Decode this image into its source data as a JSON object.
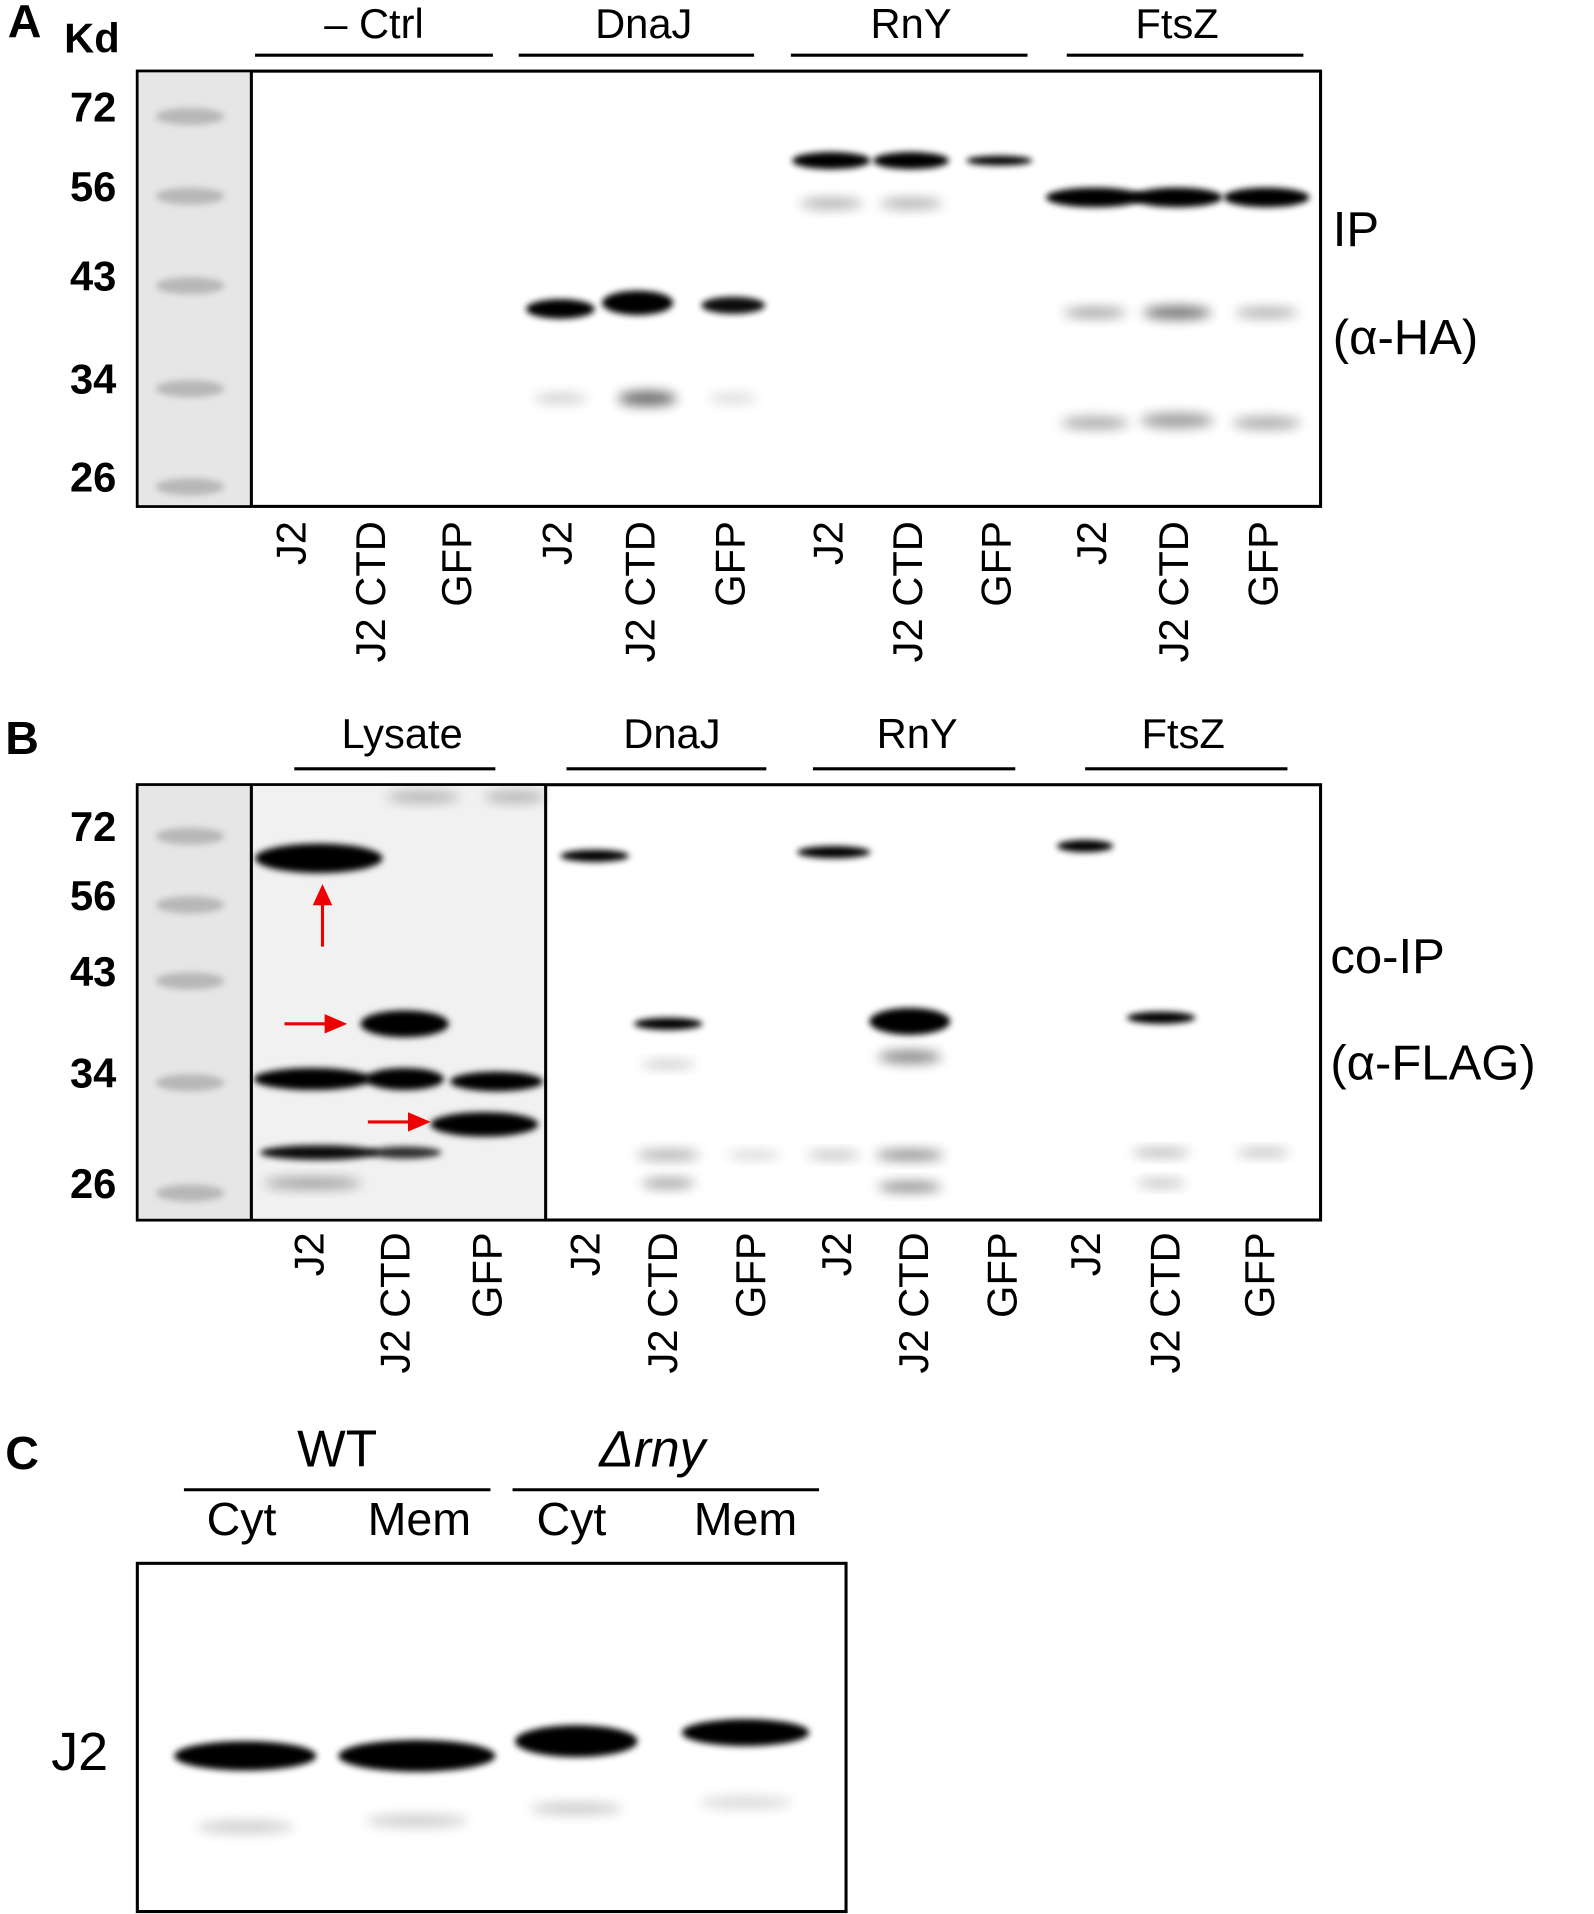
{
  "panels": [
    {
      "label": "A",
      "unit_label": "Kd",
      "markers": [
        72,
        56,
        43,
        34,
        26
      ],
      "groups": [
        {
          "name": "– Ctrl",
          "lanes": [
            "J2",
            "J2 CTD",
            "GFP"
          ]
        },
        {
          "name": "DnaJ",
          "lanes": [
            "J2",
            "J2 CTD",
            "GFP"
          ]
        },
        {
          "name": "RnY",
          "lanes": [
            "J2",
            "J2 CTD",
            "GFP"
          ]
        },
        {
          "name": "FtsZ",
          "lanes": [
            "J2",
            "J2 CTD",
            "GFP"
          ]
        }
      ],
      "side_labels": [
        "IP",
        "(α-HA)"
      ]
    },
    {
      "label": "B",
      "markers": [
        72,
        56,
        43,
        34,
        26
      ],
      "groups": [
        {
          "name": "Lysate",
          "lanes": [
            "J2",
            "J2 CTD",
            "GFP"
          ]
        },
        {
          "name": "DnaJ",
          "lanes": [
            "J2",
            "J2 CTD",
            "GFP"
          ]
        },
        {
          "name": "RnY",
          "lanes": [
            "J2",
            "J2 CTD",
            "GFP"
          ]
        },
        {
          "name": "FtsZ",
          "lanes": [
            "J2",
            "J2 CTD",
            "GFP"
          ]
        }
      ],
      "side_labels": [
        "co-IP",
        "(α-FLAG)"
      ]
    },
    {
      "label": "C",
      "groups": [
        {
          "name": "WT",
          "lanes": [
            "Cyt",
            "Mem"
          ]
        },
        {
          "name": "Δrny",
          "lanes": [
            "Cyt",
            "Mem"
          ]
        }
      ],
      "row_label": "J2"
    }
  ]
}
